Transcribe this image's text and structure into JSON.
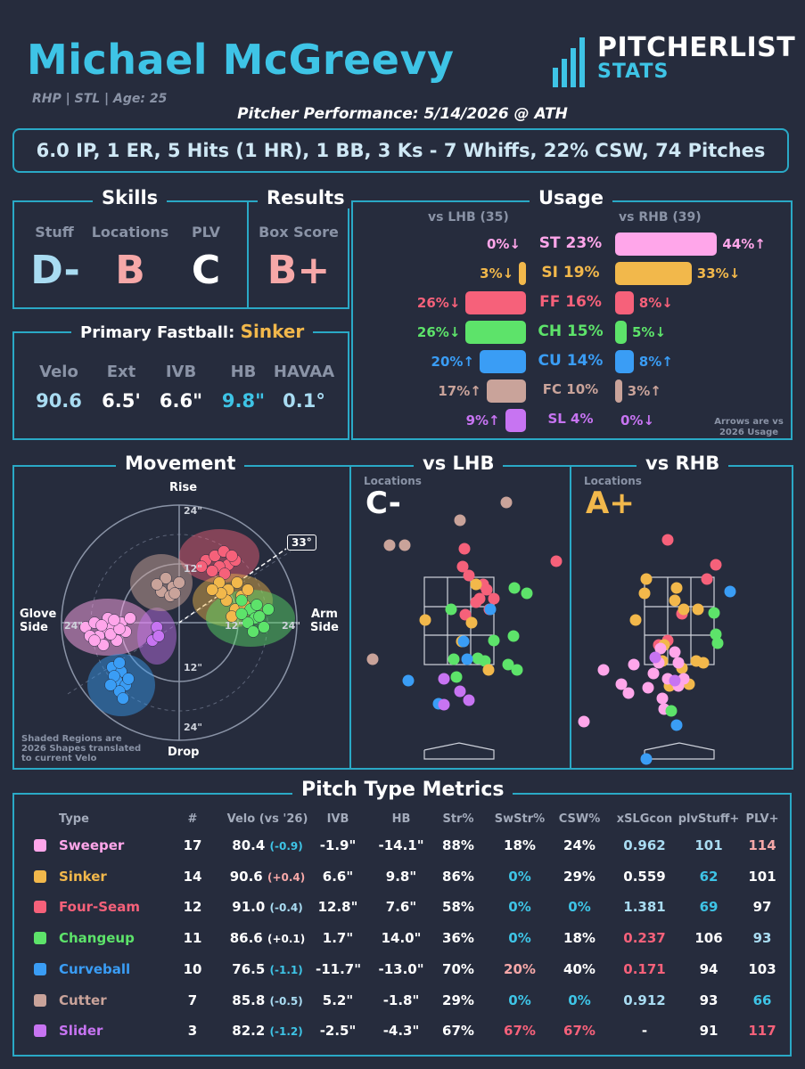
{
  "header": {
    "name": "Michael McGreevy",
    "info": "RHP | STL | Age: 25",
    "performance": "Pitcher Performance: 5/14/2026 @ ATH",
    "statline": "6.0 IP, 1 ER, 5 Hits (1 HR), 1 BB, 3 Ks - 7 Whiffs, 22% CSW, 74 Pitches",
    "logo_top": "PITCHERLIST",
    "logo_bottom": "STATS"
  },
  "skills": {
    "title": "Skills",
    "items": [
      {
        "label": "Stuff",
        "grade": "D-",
        "color": "#a9dcf2"
      },
      {
        "label": "Locations",
        "grade": "B",
        "color": "#f6a8a8"
      },
      {
        "label": "PLV",
        "grade": "C",
        "color": "#ffffff"
      }
    ]
  },
  "results": {
    "title": "Results",
    "label": "Box Score",
    "grade": "B+",
    "color": "#f6a8a8"
  },
  "primary_fastball": {
    "title": "Primary Fastball:",
    "pitch": "Sinker",
    "stats": [
      {
        "label": "Velo",
        "value": "90.6",
        "color": "#a9dcf2"
      },
      {
        "label": "Ext",
        "value": "6.5'",
        "color": "#ffffff"
      },
      {
        "label": "IVB",
        "value": "6.6\"",
        "color": "#ffffff"
      },
      {
        "label": "HB",
        "value": "9.8\"",
        "color": "#3ec4e6"
      },
      {
        "label": "HAVAA",
        "value": "0.1°",
        "color": "#a9dcf2"
      }
    ]
  },
  "usage": {
    "title": "Usage",
    "lhb_label": "vs LHB (35)",
    "rhb_label": "vs RHB (39)",
    "note_line1": "Arrows are vs",
    "note_line2": "2026 Usage",
    "rows": [
      {
        "name": "ST 23%",
        "color": "#ffa6ea",
        "lhb": "0%↓",
        "lhb_val": 0,
        "rhb": "44%↑",
        "rhb_val": 44
      },
      {
        "name": "SI 19%",
        "color": "#f2b84b",
        "lhb": "3%↓",
        "lhb_val": 3,
        "rhb": "33%↓",
        "rhb_val": 33
      },
      {
        "name": "FF 16%",
        "color": "#f6617a",
        "lhb": "26%↓",
        "lhb_val": 26,
        "rhb": "8%↓",
        "rhb_val": 8
      },
      {
        "name": "CH 15%",
        "color": "#5de36a",
        "lhb": "26%↓",
        "lhb_val": 26,
        "rhb": "5%↓",
        "rhb_val": 5
      },
      {
        "name": "CU 14%",
        "color": "#3a9df5",
        "lhb": "20%↑",
        "lhb_val": 20,
        "rhb": "8%↑",
        "rhb_val": 8
      },
      {
        "name": "FC 10%",
        "color": "#c9a39a",
        "lhb": "17%↑",
        "lhb_val": 17,
        "rhb": "3%↑",
        "rhb_val": 3
      },
      {
        "name": "SL 4%",
        "color": "#c774f2",
        "lhb": "9%↑",
        "lhb_val": 9,
        "rhb": "0%↓",
        "rhb_val": 0
      }
    ]
  },
  "movement": {
    "title": "Movement",
    "rise": "Rise",
    "drop": "Drop",
    "glove1": "Glove",
    "glove2": "Side",
    "arm1": "Arm",
    "arm2": "Side",
    "r24": "24\"",
    "r12": "12\"",
    "angle": "33°",
    "note1": "Shaded Regions are",
    "note2": "2026 Shapes translated",
    "note3": "to current Velo"
  },
  "locations_lhb": {
    "title": "vs LHB",
    "label": "Locations",
    "grade": "C-",
    "grade_color": "#ffffff"
  },
  "locations_rhb": {
    "title": "vs RHB",
    "label": "Locations",
    "grade": "A+",
    "grade_color": "#f2b84b"
  },
  "metrics": {
    "title": "Pitch Type Metrics",
    "headers": [
      "Type",
      "#",
      "Velo (vs '26)",
      "IVB",
      "HB",
      "Str%",
      "SwStr%",
      "CSW%",
      "xSLGcon",
      "plvStuff+",
      "PLV+"
    ],
    "rows": [
      {
        "type": "Sweeper",
        "color": "#ffa6ea",
        "n": "17",
        "velo": "80.4",
        "delta": "(-0.9)",
        "delta_color": "#3ec4e6",
        "ivb": "-1.9\"",
        "hb": "-14.1\"",
        "str": "88%",
        "swstr": "18%",
        "swstr_c": "#ffffff",
        "csw": "24%",
        "csw_c": "#ffffff",
        "xslg": "0.962",
        "xslg_c": "#a9dcf2",
        "stuff": "101",
        "stuff_c": "#a9dcf2",
        "plv": "114",
        "plv_c": "#f6a8a8"
      },
      {
        "type": "Sinker",
        "color": "#f2b84b",
        "n": "14",
        "velo": "90.6",
        "delta": "(+0.4)",
        "delta_color": "#f6a8a8",
        "ivb": "6.6\"",
        "hb": "9.8\"",
        "str": "86%",
        "swstr": "0%",
        "swstr_c": "#3ec4e6",
        "csw": "29%",
        "csw_c": "#ffffff",
        "xslg": "0.559",
        "xslg_c": "#ffffff",
        "stuff": "62",
        "stuff_c": "#3ec4e6",
        "plv": "101",
        "plv_c": "#ffffff"
      },
      {
        "type": "Four-Seam",
        "color": "#f6617a",
        "n": "12",
        "velo": "91.0",
        "delta": "(-0.4)",
        "delta_color": "#a9dcf2",
        "ivb": "12.8\"",
        "hb": "7.6\"",
        "str": "58%",
        "swstr": "0%",
        "swstr_c": "#3ec4e6",
        "csw": "0%",
        "csw_c": "#3ec4e6",
        "xslg": "1.381",
        "xslg_c": "#a9dcf2",
        "stuff": "69",
        "stuff_c": "#3ec4e6",
        "plv": "97",
        "plv_c": "#ffffff"
      },
      {
        "type": "Changeup",
        "color": "#5de36a",
        "n": "11",
        "velo": "86.6",
        "delta": "(+0.1)",
        "delta_color": "#ffffff",
        "ivb": "1.7\"",
        "hb": "14.0\"",
        "str": "36%",
        "swstr": "0%",
        "swstr_c": "#3ec4e6",
        "csw": "18%",
        "csw_c": "#ffffff",
        "xslg": "0.237",
        "xslg_c": "#f6617a",
        "stuff": "106",
        "stuff_c": "#ffffff",
        "plv": "93",
        "plv_c": "#a9dcf2"
      },
      {
        "type": "Curveball",
        "color": "#3a9df5",
        "n": "10",
        "velo": "76.5",
        "delta": "(-1.1)",
        "delta_color": "#3ec4e6",
        "ivb": "-11.7\"",
        "hb": "-13.0\"",
        "str": "70%",
        "swstr": "20%",
        "swstr_c": "#f6a8a8",
        "csw": "40%",
        "csw_c": "#ffffff",
        "xslg": "0.171",
        "xslg_c": "#f6617a",
        "stuff": "94",
        "stuff_c": "#ffffff",
        "plv": "103",
        "plv_c": "#ffffff"
      },
      {
        "type": "Cutter",
        "color": "#c9a39a",
        "n": "7",
        "velo": "85.8",
        "delta": "(-0.5)",
        "delta_color": "#a9dcf2",
        "ivb": "5.2\"",
        "hb": "-1.8\"",
        "str": "29%",
        "swstr": "0%",
        "swstr_c": "#3ec4e6",
        "csw": "0%",
        "csw_c": "#3ec4e6",
        "xslg": "0.912",
        "xslg_c": "#a9dcf2",
        "stuff": "93",
        "stuff_c": "#ffffff",
        "plv": "66",
        "plv_c": "#3ec4e6"
      },
      {
        "type": "Slider",
        "color": "#c774f2",
        "n": "3",
        "velo": "82.2",
        "delta": "(-1.2)",
        "delta_color": "#3ec4e6",
        "ivb": "-2.5\"",
        "hb": "-4.3\"",
        "str": "67%",
        "swstr": "67%",
        "swstr_c": "#f6617a",
        "csw": "67%",
        "csw_c": "#f6617a",
        "xslg": "-",
        "xslg_c": "#ffffff",
        "stuff": "91",
        "stuff_c": "#ffffff",
        "plv": "117",
        "plv_c": "#f6617a"
      }
    ]
  }
}
